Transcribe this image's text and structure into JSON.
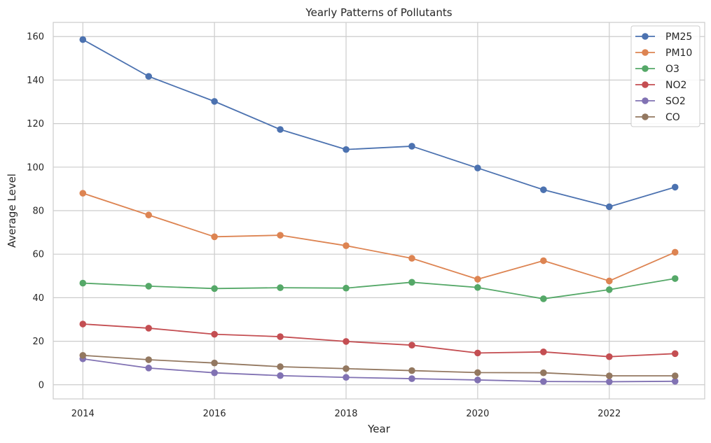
{
  "chart_data": {
    "type": "line",
    "title": "Yearly Patterns of Pollutants",
    "xlabel": "Year",
    "ylabel": "Average Level",
    "x": [
      2014,
      2015,
      2016,
      2017,
      2018,
      2019,
      2020,
      2021,
      2022,
      2023
    ],
    "xticks": [
      2014,
      2016,
      2018,
      2020,
      2022
    ],
    "yticks": [
      0,
      20,
      40,
      60,
      80,
      100,
      120,
      140,
      160
    ],
    "xlim": [
      2013.55,
      2023.45
    ],
    "ylim": [
      -6.5,
      166.5
    ],
    "grid": true,
    "legend_position": "top-right",
    "series": [
      {
        "name": "PM25",
        "color": "#4c72b0",
        "values": [
          158.6,
          141.7,
          130.2,
          117.3,
          108.1,
          109.6,
          99.6,
          89.6,
          81.8,
          90.8
        ]
      },
      {
        "name": "PM10",
        "color": "#dd8452",
        "values": [
          88.0,
          78.0,
          68.0,
          68.7,
          63.9,
          58.1,
          48.5,
          57.0,
          47.7,
          60.9
        ]
      },
      {
        "name": "O3",
        "color": "#55a868",
        "values": [
          46.7,
          45.3,
          44.2,
          44.6,
          44.4,
          47.1,
          44.7,
          39.5,
          43.7,
          48.8
        ]
      },
      {
        "name": "NO2",
        "color": "#c44e52",
        "values": [
          27.9,
          26.0,
          23.2,
          22.1,
          19.9,
          18.2,
          14.6,
          15.1,
          12.9,
          14.3
        ]
      },
      {
        "name": "SO2",
        "color": "#8172b3",
        "values": [
          11.9,
          7.7,
          5.5,
          4.2,
          3.4,
          2.8,
          2.2,
          1.5,
          1.4,
          1.6
        ]
      },
      {
        "name": "CO",
        "color": "#937860",
        "values": [
          13.5,
          11.5,
          10.0,
          8.3,
          7.4,
          6.5,
          5.6,
          5.5,
          4.1,
          4.1
        ]
      }
    ]
  }
}
